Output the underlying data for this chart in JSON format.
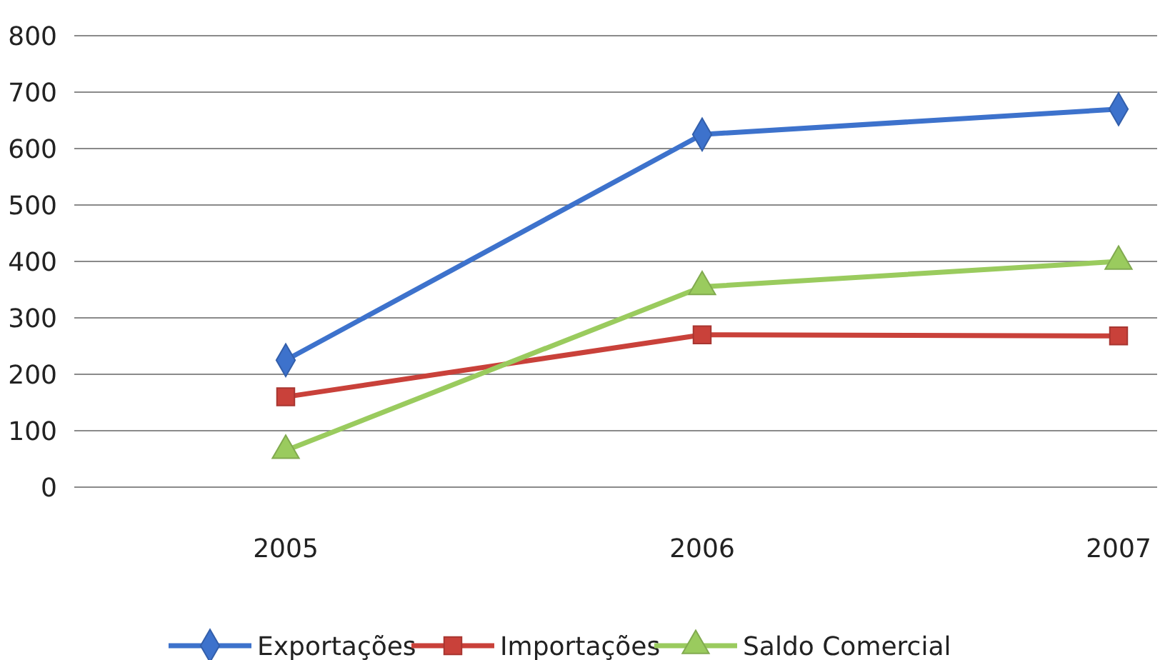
{
  "chart_data": {
    "type": "line",
    "categories": [
      "2005",
      "2006",
      "2007"
    ],
    "series": [
      {
        "name": "Exportações",
        "color": "#3d72cc",
        "marker": "diamond",
        "values": [
          225,
          625,
          670
        ]
      },
      {
        "name": "Importações",
        "color": "#c9413a",
        "marker": "square",
        "values": [
          160,
          270,
          268
        ]
      },
      {
        "name": "Saldo Comercial",
        "color": "#9acb5e",
        "marker": "triangle",
        "values": [
          65,
          355,
          400
        ]
      }
    ],
    "ylim": [
      0,
      800
    ],
    "yticks": [
      0,
      100,
      200,
      300,
      400,
      500,
      600,
      700,
      800
    ],
    "grid": "y",
    "legend": "bottom"
  }
}
